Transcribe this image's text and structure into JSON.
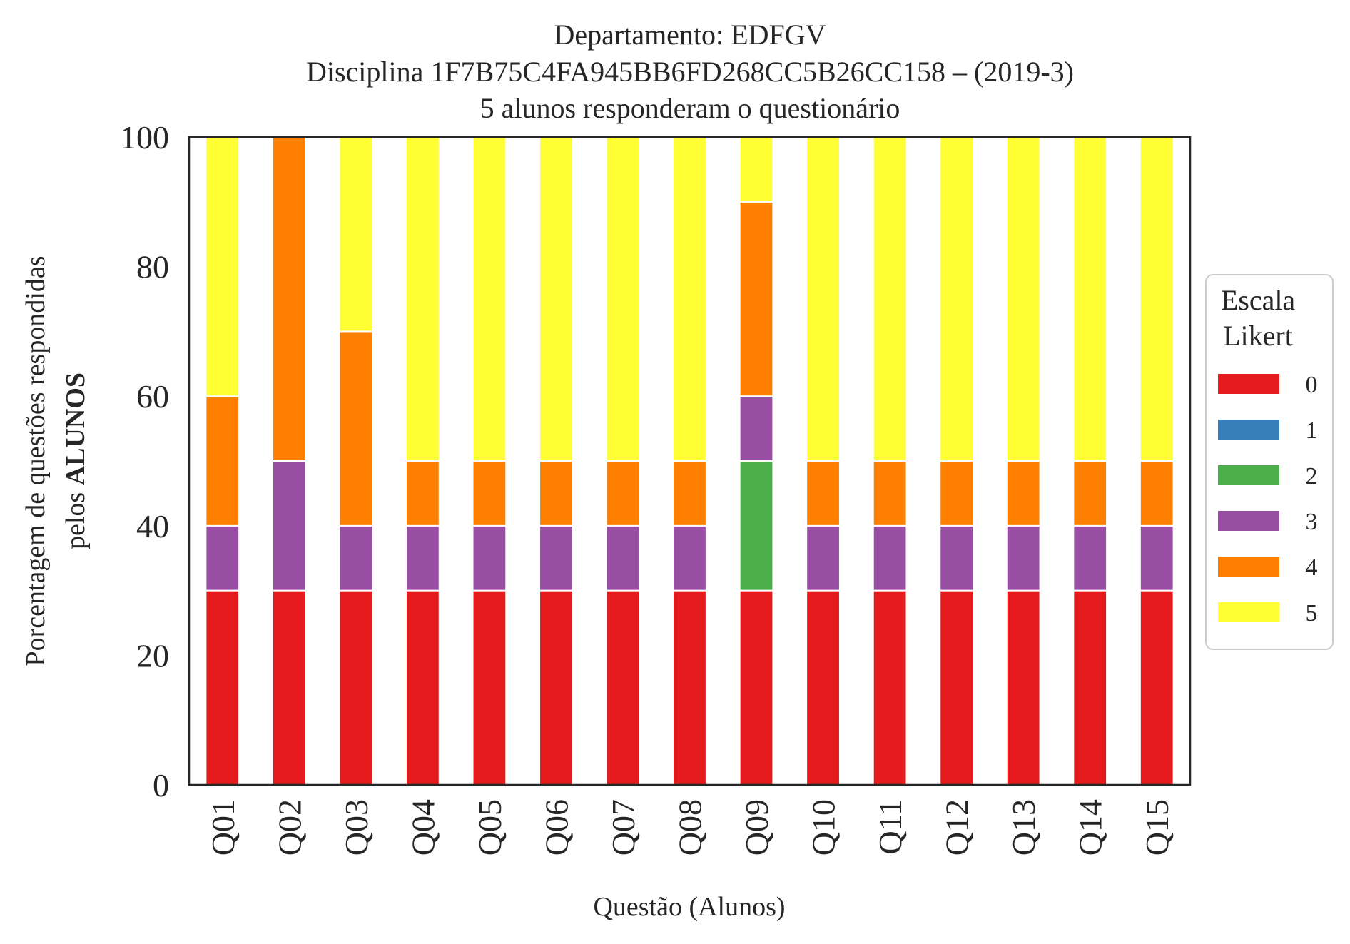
{
  "chart_data": {
    "type": "bar",
    "stacked": true,
    "title": {
      "line1": "Departamento: EDFGV",
      "line2": "Disciplina 1F7B75C4FA945BB6FD268CC5B26CC158 – (2019-3)",
      "line3": "5 alunos responderam o questionário"
    },
    "xlabel": "Questão (Alunos)",
    "ylabel": {
      "line1": "Porcentagem de questões respondidas",
      "line2_prefix": "pelos ",
      "line2_bold": "ALUNOS"
    },
    "ylim": [
      0,
      100
    ],
    "yticks": [
      "0",
      "20",
      "40",
      "60",
      "80",
      "100"
    ],
    "categories": [
      "Q01",
      "Q02",
      "Q03",
      "Q04",
      "Q05",
      "Q06",
      "Q07",
      "Q08",
      "Q09",
      "Q10",
      "Q11",
      "Q12",
      "Q13",
      "Q14",
      "Q15"
    ],
    "series": [
      {
        "name": "0",
        "color": "#e41a1c",
        "values": [
          30,
          30,
          30,
          30,
          30,
          30,
          30,
          30,
          30,
          30,
          30,
          30,
          30,
          30,
          30
        ]
      },
      {
        "name": "1",
        "color": "#377eb8",
        "values": [
          0,
          0,
          0,
          0,
          0,
          0,
          0,
          0,
          0,
          0,
          0,
          0,
          0,
          0,
          0
        ]
      },
      {
        "name": "2",
        "color": "#4daf4a",
        "values": [
          0,
          0,
          0,
          0,
          0,
          0,
          0,
          0,
          20,
          0,
          0,
          0,
          0,
          0,
          0
        ]
      },
      {
        "name": "3",
        "color": "#984ea3",
        "values": [
          10,
          20,
          10,
          10,
          10,
          10,
          10,
          10,
          10,
          10,
          10,
          10,
          10,
          10,
          10
        ]
      },
      {
        "name": "4",
        "color": "#ff7f00",
        "values": [
          20,
          50,
          30,
          10,
          10,
          10,
          10,
          10,
          30,
          10,
          10,
          10,
          10,
          10,
          10
        ]
      },
      {
        "name": "5",
        "color": "#ffff33",
        "values": [
          40,
          0,
          30,
          50,
          50,
          50,
          50,
          50,
          10,
          50,
          50,
          50,
          50,
          50,
          50
        ]
      }
    ],
    "legend": {
      "title_line1": "Escala",
      "title_line2": "Likert",
      "placement": "right"
    },
    "grid": false
  }
}
